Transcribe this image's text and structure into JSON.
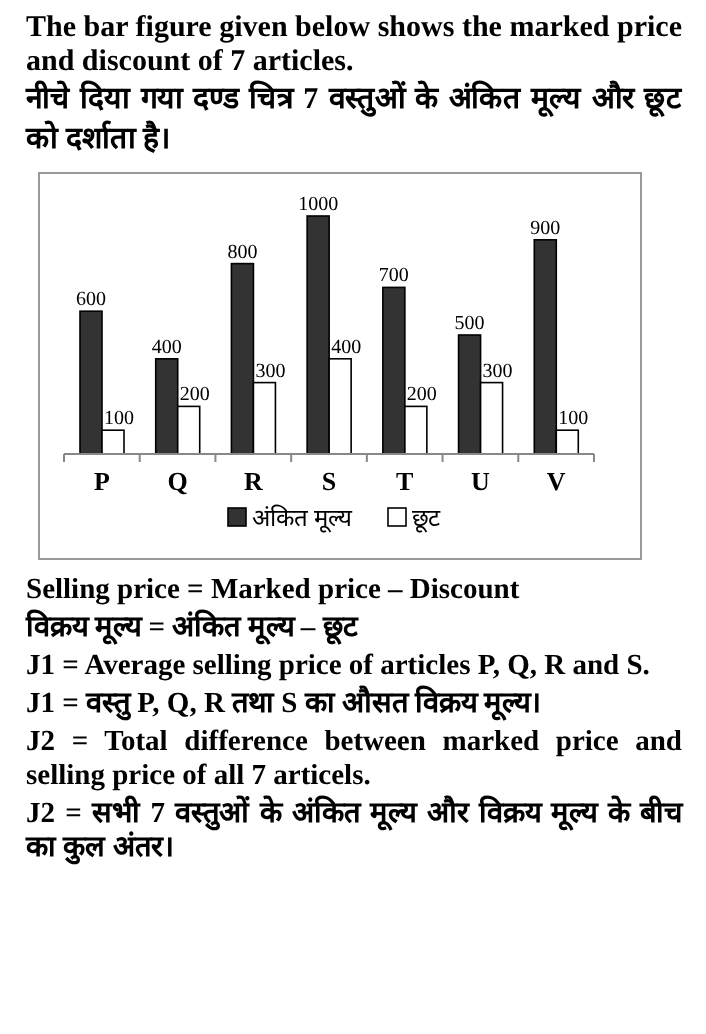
{
  "chart_data": {
    "type": "bar",
    "title": "The bar figure given below shows the marked price and discount of 7 articles.",
    "subtitle": "नीचे दिया गया दण्ड चित्र 7 वस्तुओं के अंकित मूल्य और छूट को दर्शाता है।",
    "categories": [
      "P",
      "Q",
      "R",
      "S",
      "T",
      "U",
      "V"
    ],
    "series": [
      {
        "name": "अंकित मूल्य",
        "color": "#333333",
        "values": [
          600,
          400,
          800,
          1000,
          700,
          500,
          900
        ]
      },
      {
        "name": "छूट",
        "color": "#ffffff",
        "values": [
          100,
          200,
          300,
          400,
          200,
          300,
          100
        ]
      }
    ],
    "data_labels": true,
    "legend": "bottom",
    "annotations": [
      "Selling price = Marked price – Discount",
      "विक्रय मूल्य = अंकित मूल्य – छूट",
      "J1 = Average selling price of articles P, Q, R and S.",
      "J1 = वस्तु P, Q, R तथा S का औसत विक्रय मूल्य।",
      "J2 = Total difference between marked price and selling price of all 7 articels.",
      "J2 =  सभी 7 वस्तुओं के अंकित मूल्य और विक्रय मूल्य के बीच का कुल अंतर।"
    ]
  }
}
